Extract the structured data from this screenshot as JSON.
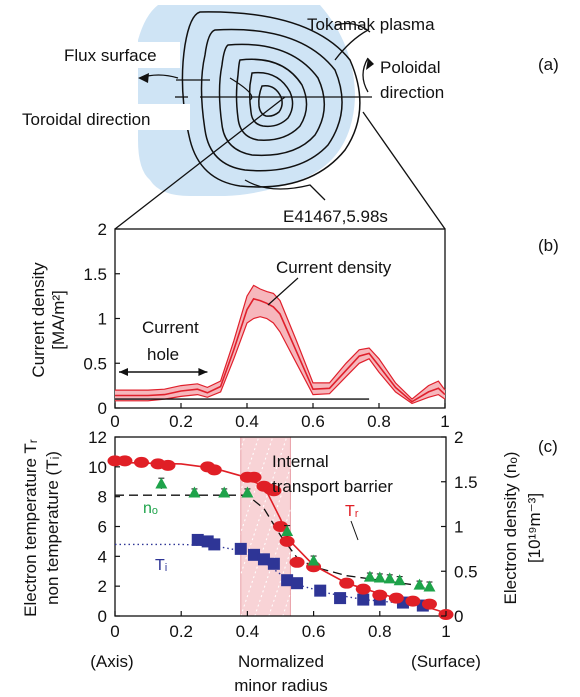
{
  "panel_labels": {
    "a": "(a)",
    "b": "(b)",
    "c": "(c)"
  },
  "diagram": {
    "tokamak_plasma": "Tokamak plasma",
    "flux_surface": "Flux surface",
    "poloidal_direction_line1": "Poloidal",
    "poloidal_direction_line2": "direction",
    "toroidal_direction": "Toroidal direction"
  },
  "colors": {
    "plasma_fill": "#cfe4f5",
    "current_band": "#f6b7bc",
    "current_line": "#e0202c",
    "temperature_tr": "#e01f26",
    "temperature_ti": "#2e3596",
    "density_ne": "#1ea34a",
    "barrier_shade": "#f8d3d6"
  },
  "chart_data": [
    {
      "type": "line",
      "panel": "(b)",
      "title": "E41467,5.98s",
      "ylabel_line1": "Current density",
      "ylabel_line2": "[MA/m²]",
      "xlim": [
        0,
        1
      ],
      "ylim": [
        0,
        2
      ],
      "xticks": [
        "0",
        "0.2",
        "0.4",
        "0.6",
        "0.8",
        "1"
      ],
      "yticks": [
        "0",
        "0.5",
        "1",
        "1.5",
        "2"
      ],
      "annotations": {
        "current_density": "Current density",
        "current_hole_line1": "Current",
        "current_hole_line2": "hole"
      },
      "current_hole_range": [
        0,
        0.28
      ],
      "series": [
        {
          "name": "Current density",
          "x": [
            0,
            0.1,
            0.15,
            0.2,
            0.25,
            0.28,
            0.32,
            0.36,
            0.4,
            0.42,
            0.44,
            0.46,
            0.48,
            0.5,
            0.55,
            0.6,
            0.65,
            0.7,
            0.74,
            0.77,
            0.8,
            0.85,
            0.9,
            0.95,
            0.98,
            1
          ],
          "upper": [
            0.2,
            0.2,
            0.21,
            0.25,
            0.27,
            0.23,
            0.3,
            0.75,
            1.25,
            1.37,
            1.33,
            1.3,
            1.28,
            1.2,
            0.75,
            0.28,
            0.28,
            0.5,
            0.65,
            0.67,
            0.55,
            0.28,
            0.1,
            0.25,
            0.3,
            0.2
          ],
          "lower": [
            0.08,
            0.08,
            0.1,
            0.13,
            0.15,
            0.12,
            0.18,
            0.55,
            0.95,
            1.0,
            1.02,
            1.0,
            0.95,
            0.85,
            0.5,
            0.15,
            0.16,
            0.35,
            0.5,
            0.55,
            0.4,
            0.18,
            0.05,
            0.12,
            0.15,
            0.1
          ],
          "mid": [
            0.14,
            0.14,
            0.15,
            0.19,
            0.21,
            0.17,
            0.24,
            0.65,
            1.1,
            1.22,
            1.2,
            1.17,
            1.13,
            1.05,
            0.63,
            0.21,
            0.22,
            0.42,
            0.58,
            0.61,
            0.47,
            0.23,
            0.07,
            0.18,
            0.22,
            0.15
          ]
        }
      ],
      "baseline": {
        "x": [
          0,
          0.77
        ],
        "y": 0.1
      }
    },
    {
      "type": "scatter",
      "panel": "(c)",
      "ylabel_left_line1": "Electron temperature Tᵣ",
      "ylabel_left_line2": "non temperature (Tᵢ)",
      "ylabel_right_line1": "Electron density (nₒ)",
      "ylabel_right_line2": "[10¹⁹m⁻³]",
      "xlabel_line1": "Normalized",
      "xlabel_line2": "minor radius",
      "x_end_labels": {
        "axis": "(Axis)",
        "surface": "(Surface)"
      },
      "xlim": [
        0,
        1
      ],
      "ylim_left": [
        0,
        12
      ],
      "ylim_right": [
        0,
        2
      ],
      "xticks": [
        "0",
        "0.2",
        "0.4",
        "0.6",
        "0.8",
        "1"
      ],
      "yticks_left": [
        "0",
        "2",
        "4",
        "6",
        "8",
        "10",
        "12"
      ],
      "yticks_right": [
        "0",
        "0.5",
        "1",
        "1.5",
        "2"
      ],
      "barrier_label_line1": "Internal",
      "barrier_label_line2": "transport barrier",
      "barrier_range": [
        0.38,
        0.53
      ],
      "series": [
        {
          "name": "Tᵣ",
          "axis": "left",
          "x": [
            0,
            0.03,
            0.08,
            0.13,
            0.16,
            0.28,
            0.3,
            0.4,
            0.42,
            0.45,
            0.47,
            0.48,
            0.5,
            0.52,
            0.55,
            0.6,
            0.7,
            0.75,
            0.8,
            0.85,
            0.9,
            0.95,
            1.0
          ],
          "y": [
            10.4,
            10.4,
            10.3,
            10.2,
            10.1,
            10.0,
            9.8,
            9.3,
            9.3,
            8.7,
            8.5,
            8.4,
            6.0,
            5.0,
            3.6,
            3.3,
            2.2,
            1.8,
            1.4,
            1.2,
            1.0,
            0.8,
            0.1
          ],
          "fit_x": [
            0,
            0.2,
            0.3,
            0.38,
            0.4,
            0.45,
            0.5,
            0.53,
            0.6,
            0.7,
            0.8,
            0.9,
            1.0
          ],
          "fit_y": [
            10.3,
            10.2,
            9.9,
            9.4,
            9.2,
            8.7,
            6.5,
            5.0,
            3.4,
            2.2,
            1.5,
            0.9,
            0.2
          ]
        },
        {
          "name": "Tᵢ",
          "axis": "left",
          "x": [
            0.25,
            0.28,
            0.3,
            0.38,
            0.42,
            0.45,
            0.48,
            0.52,
            0.55,
            0.62,
            0.68,
            0.75,
            0.8,
            0.87,
            0.93
          ],
          "y": [
            5.1,
            5.0,
            4.8,
            4.5,
            4.1,
            3.8,
            3.5,
            2.4,
            2.2,
            1.7,
            1.2,
            1.1,
            1.1,
            0.9,
            0.7
          ],
          "fit_x": [
            0,
            0.2,
            0.3,
            0.4,
            0.45,
            0.5,
            0.55,
            0.65,
            0.75,
            0.85,
            0.95
          ],
          "fit_y": [
            4.8,
            4.8,
            4.7,
            4.3,
            3.6,
            2.8,
            2.1,
            1.5,
            1.1,
            0.9,
            0.6
          ]
        },
        {
          "name": "nₒ",
          "axis": "right",
          "x": [
            0.14,
            0.24,
            0.33,
            0.4,
            0.52,
            0.6,
            0.77,
            0.8,
            0.83,
            0.86,
            0.92,
            0.95
          ],
          "y": [
            1.48,
            1.38,
            1.38,
            1.38,
            0.95,
            0.62,
            0.44,
            0.43,
            0.42,
            0.4,
            0.35,
            0.33
          ],
          "err": [
            0.06,
            0.04,
            0.04,
            0.04,
            0.06,
            0.05,
            0.04,
            0.04,
            0.04,
            0.04,
            0.04,
            0.05
          ],
          "fit_x": [
            0,
            0.3,
            0.4,
            0.45,
            0.5,
            0.55,
            0.6,
            0.7,
            0.8,
            0.9,
            0.95
          ],
          "fit_y": [
            1.35,
            1.35,
            1.35,
            1.2,
            0.9,
            0.65,
            0.55,
            0.45,
            0.4,
            0.35,
            0.3
          ]
        }
      ]
    }
  ]
}
